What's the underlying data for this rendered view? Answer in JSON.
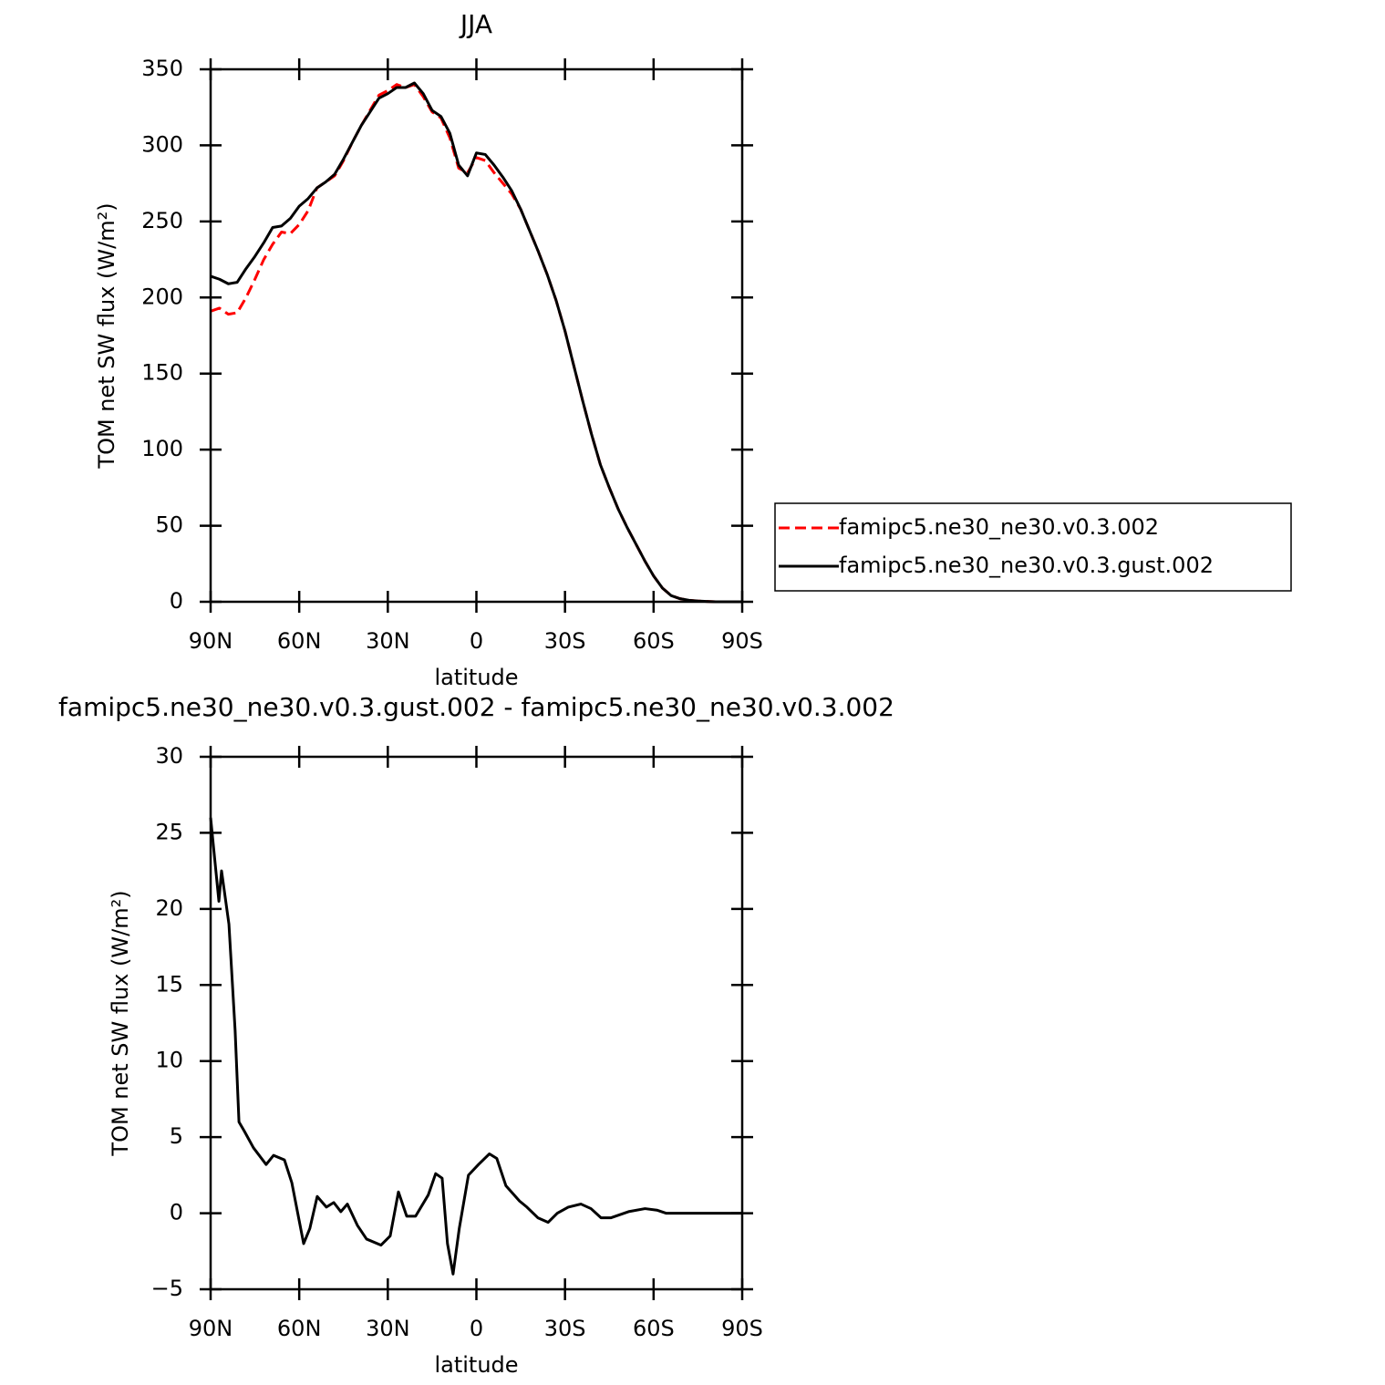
{
  "chart_data": [
    {
      "type": "line",
      "title": "JJA",
      "xlabel": "latitude",
      "ylabel": "TOM net SW flux (W/m²)",
      "x": [
        90,
        87,
        84,
        81,
        78,
        75,
        72,
        69,
        66,
        63,
        60,
        57,
        54,
        51,
        48,
        45,
        42,
        39,
        36,
        33,
        30,
        27,
        24,
        21,
        18,
        15,
        12,
        9,
        6,
        3,
        0,
        -3,
        -6,
        -9,
        -12,
        -15,
        -18,
        -21,
        -24,
        -27,
        -30,
        -33,
        -36,
        -39,
        -42,
        -45,
        -48,
        -51,
        -54,
        -57,
        -60,
        -63,
        -66,
        -69,
        -72,
        -75,
        -78,
        -81,
        -84,
        -87,
        -90
      ],
      "xlim": [
        90,
        -90
      ],
      "xticks": [
        {
          "value": 90,
          "label": "90N"
        },
        {
          "value": 60,
          "label": "60N"
        },
        {
          "value": 30,
          "label": "30N"
        },
        0,
        {
          "value": -30,
          "label": "30S"
        },
        {
          "value": -60,
          "label": "60S"
        },
        {
          "value": -90,
          "label": "90S"
        }
      ],
      "ylim": [
        0,
        350
      ],
      "yticks": [
        0,
        50,
        100,
        150,
        200,
        250,
        300,
        350
      ],
      "legend": "outside-right",
      "series": [
        {
          "name": "famipc5.ne30_ne30.v0.3.002",
          "color": "#ff0000",
          "dashed": true,
          "values": [
            191,
            193,
            189,
            190,
            200,
            212,
            225,
            235,
            243,
            242,
            248,
            257,
            272,
            276,
            280,
            290,
            302,
            313,
            323,
            333,
            336,
            340,
            338,
            340,
            332,
            322,
            318,
            305,
            285,
            282,
            292,
            290,
            282,
            275,
            268,
            258,
            244,
            230,
            215,
            198,
            178,
            155,
            132,
            110,
            90,
            75,
            61,
            49,
            38,
            27,
            17,
            9,
            4,
            2,
            1,
            0.5,
            0.2,
            0,
            0,
            0,
            0
          ]
        },
        {
          "name": "famipc5.ne30_ne30.v0.3.gust.002",
          "color": "#000000",
          "dashed": false,
          "values": [
            214,
            212,
            209,
            210,
            219,
            227,
            236,
            246,
            247,
            252,
            260,
            265,
            272,
            276,
            281,
            291,
            302,
            313,
            322,
            331,
            334,
            338,
            338,
            341,
            334,
            323,
            319,
            308,
            287,
            280,
            295,
            294,
            287,
            279,
            270,
            258,
            244,
            230,
            215,
            198,
            178,
            155,
            132,
            110,
            90,
            75,
            61,
            49,
            38,
            27,
            17,
            9,
            4,
            2,
            1,
            0.5,
            0.2,
            0,
            0,
            0,
            0
          ]
        }
      ]
    },
    {
      "type": "line",
      "title": "famipc5.ne30_ne30.v0.3.gust.002 - famipc5.ne30_ne30.v0.3.002",
      "xlabel": "latitude",
      "ylabel": "TOM net SW flux (W/m²)",
      "x": [
        90,
        87.2,
        86.3,
        83.8,
        81.7,
        80.4,
        78.6,
        75.5,
        71.2,
        68.7,
        65,
        62.5,
        58.5,
        56.4,
        53.9,
        50.8,
        48.3,
        45.9,
        43.7,
        40.3,
        37.2,
        32.3,
        29.2,
        26.4,
        23.6,
        20.6,
        16.3,
        13.8,
        11.6,
        9.8,
        7.9,
        5.8,
        2.7,
        -0.7,
        -4.4,
        -6.9,
        -10,
        -14.6,
        -17.1,
        -20.8,
        -24.3,
        -27.4,
        -31.1,
        -35.4,
        -38.8,
        -42.2,
        -45.6,
        -51.5,
        -57.1,
        -61.1,
        -64.2,
        -70.4,
        -90
      ],
      "xlim": [
        90,
        -90
      ],
      "xticks": [
        {
          "value": 90,
          "label": "90N"
        },
        {
          "value": 60,
          "label": "60N"
        },
        {
          "value": 30,
          "label": "30N"
        },
        0,
        {
          "value": -30,
          "label": "30S"
        },
        {
          "value": -60,
          "label": "60S"
        },
        {
          "value": -90,
          "label": "90S"
        }
      ],
      "ylim": [
        -5,
        30
      ],
      "yticks": [
        {
          "value": -5,
          "label": "−5"
        },
        0,
        5,
        10,
        15,
        20,
        25,
        30
      ],
      "series": [
        {
          "color": "#000000",
          "dashed": false,
          "values": [
            26,
            20.5,
            22.5,
            19,
            12,
            6,
            5.4,
            4.3,
            3.2,
            3.8,
            3.5,
            2,
            -2,
            -1,
            1.1,
            0.4,
            0.7,
            0.1,
            0.6,
            -0.8,
            -1.7,
            -2.1,
            -1.5,
            1.4,
            -0.2,
            -0.2,
            1.2,
            2.6,
            2.3,
            -2,
            -4,
            -1,
            2.5,
            3.2,
            3.9,
            3.6,
            1.8,
            0.8,
            0.4,
            -0.3,
            -0.6,
            0,
            0.4,
            0.6,
            0.3,
            -0.3,
            -0.3,
            0.1,
            0.3,
            0.2,
            0,
            0,
            0
          ]
        }
      ]
    }
  ]
}
